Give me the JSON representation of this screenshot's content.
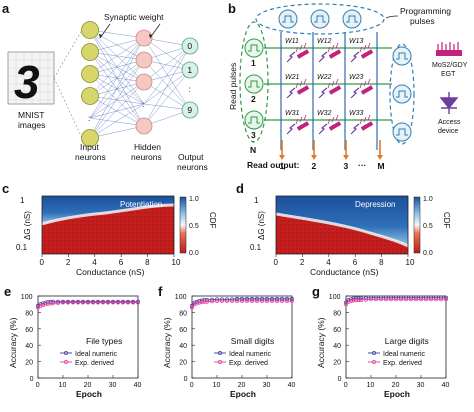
{
  "panels": {
    "a": {
      "letter": "a",
      "digit_image_text": "3",
      "mnist_label_line1": "MNIST",
      "mnist_label_line2": "images",
      "input_label_line1": "Input",
      "input_label_line2": "neurons",
      "hidden_label_line1": "Hidden",
      "hidden_label_line2": "neurons",
      "output_label_line1": "Output",
      "output_label_line2": "neurons",
      "synaptic_weight_label": "Synaptic weight",
      "output_neuron_labels": [
        "0",
        "1",
        "9"
      ],
      "output_dots": ":"
    },
    "b": {
      "letter": "b",
      "programming_pulses_line1": "Programming",
      "programming_pulses_line2": "pulses",
      "read_pulses_label": "Read pulses",
      "row_labels": [
        "1",
        "2",
        "3",
        "N"
      ],
      "row_dots": ":",
      "weight_labels": [
        [
          "W11",
          "W12",
          "W13"
        ],
        [
          "W21",
          "W22",
          "W23"
        ],
        [
          "W31",
          "W32",
          "W33"
        ]
      ],
      "read_output_label": "Read output:",
      "column_labels": [
        "1",
        "2",
        "3",
        "M"
      ],
      "column_dots": "···",
      "device_label_line1": "MoS2/GDY",
      "device_label_line2": "EGT",
      "access_label_line1": "Access",
      "access_label_line2": "device",
      "colors": {
        "pulse_blue": "#2f7fb5",
        "row_line": "#2e9a48",
        "col_line": "#2f6fb0",
        "device_magenta": "#c2227a",
        "output_arrow": "#e07a28",
        "diode": "#6b3fa0"
      }
    },
    "c": {
      "letter": "c",
      "title": "Potentiation",
      "xlabel": "Conductance (nS)",
      "ylabel": "ΔG (nS)",
      "x_ticks": [
        "0",
        "2",
        "4",
        "6",
        "8",
        "10"
      ],
      "y_ticks": [
        "1",
        "0.1"
      ],
      "colorbar_label": "CDF",
      "colorbar_ticks": [
        "1.0",
        "0.5",
        "0.0"
      ]
    },
    "d": {
      "letter": "d",
      "title": "Depression",
      "xlabel": "Conductance (nS)",
      "ylabel": "ΔG (nS)",
      "x_ticks": [
        "0",
        "2",
        "4",
        "6",
        "8",
        "10"
      ],
      "y_ticks": [
        "1",
        "0.1"
      ],
      "colorbar_label": "CDF",
      "colorbar_ticks": [
        "1.0",
        "0.5",
        "0.0"
      ]
    }
  },
  "chart_data": [
    {
      "panel": "e",
      "type": "line",
      "title": "File types",
      "xlabel": "Epoch",
      "ylabel": "Accuracy (%)",
      "xlim": [
        0,
        40
      ],
      "ylim": [
        0,
        100
      ],
      "x_ticks": [
        "0",
        "10",
        "20",
        "30",
        "40"
      ],
      "y_ticks": [
        "0",
        "20",
        "40",
        "60",
        "80",
        "100"
      ],
      "legend_position": "lower-right",
      "series": [
        {
          "name": "Ideal numeric",
          "color": "#3a3aa8",
          "x": [
            0,
            1,
            2,
            3,
            4,
            5,
            6,
            8,
            10,
            12,
            14,
            16,
            18,
            20,
            22,
            24,
            26,
            28,
            30,
            32,
            34,
            36,
            38,
            40
          ],
          "values": [
            88,
            90,
            91,
            92,
            92.5,
            93,
            93,
            93,
            93,
            93,
            93,
            93,
            93,
            93,
            93,
            93,
            93,
            93,
            93,
            93,
            93,
            93,
            93,
            93
          ]
        },
        {
          "name": "Exp. derived",
          "color": "#e0409a",
          "x": [
            0,
            1,
            2,
            3,
            4,
            5,
            6,
            8,
            10,
            12,
            14,
            16,
            18,
            20,
            22,
            24,
            26,
            28,
            30,
            32,
            34,
            36,
            38,
            40
          ],
          "values": [
            86,
            88,
            89,
            90,
            90.5,
            91,
            91,
            91.5,
            92,
            92,
            92,
            92,
            92,
            92,
            92,
            92,
            92,
            92,
            92,
            92,
            92,
            92,
            92,
            92
          ]
        }
      ]
    },
    {
      "panel": "f",
      "type": "line",
      "title": "Small digits",
      "xlabel": "Epoch",
      "ylabel": "Accuracy (%)",
      "xlim": [
        0,
        40
      ],
      "ylim": [
        0,
        100
      ],
      "x_ticks": [
        "0",
        "10",
        "20",
        "30",
        "40"
      ],
      "y_ticks": [
        "0",
        "20",
        "40",
        "60",
        "80",
        "100"
      ],
      "legend_position": "lower-right",
      "series": [
        {
          "name": "Ideal numeric",
          "color": "#3a3aa8",
          "x": [
            0,
            1,
            2,
            3,
            4,
            5,
            6,
            8,
            10,
            12,
            14,
            16,
            18,
            20,
            22,
            24,
            26,
            28,
            30,
            32,
            34,
            36,
            38,
            40
          ],
          "values": [
            88,
            92,
            93,
            94,
            94.5,
            95,
            95,
            95.5,
            96,
            96,
            96,
            96,
            96.5,
            96.5,
            96.5,
            96.5,
            96.5,
            96.5,
            96.5,
            96.5,
            96.5,
            96.5,
            96.5,
            96.5
          ]
        },
        {
          "name": "Exp. derived",
          "color": "#e0409a",
          "x": [
            0,
            1,
            2,
            3,
            4,
            5,
            6,
            8,
            10,
            12,
            14,
            16,
            18,
            20,
            22,
            24,
            26,
            28,
            30,
            32,
            34,
            36,
            38,
            40
          ],
          "values": [
            86,
            90,
            91,
            92,
            92.5,
            93,
            93,
            93.5,
            94,
            94,
            94,
            94,
            94,
            94,
            94,
            94,
            94,
            94,
            94,
            94,
            94,
            94,
            94,
            94
          ]
        }
      ]
    },
    {
      "panel": "g",
      "type": "line",
      "title": "Large digits",
      "xlabel": "Epoch",
      "ylabel": "Accuracy (%)",
      "xlim": [
        0,
        40
      ],
      "ylim": [
        0,
        100
      ],
      "x_ticks": [
        "0",
        "10",
        "20",
        "30",
        "40"
      ],
      "y_ticks": [
        "0",
        "20",
        "40",
        "60",
        "80",
        "100"
      ],
      "legend_position": "lower-right",
      "series": [
        {
          "name": "Ideal numeric",
          "color": "#3a3aa8",
          "x": [
            0,
            1,
            2,
            3,
            4,
            5,
            6,
            8,
            10,
            12,
            14,
            16,
            18,
            20,
            22,
            24,
            26,
            28,
            30,
            32,
            34,
            36,
            38,
            40
          ],
          "values": [
            92,
            95,
            96,
            97,
            97,
            97.5,
            97.5,
            97.5,
            98,
            98,
            98,
            98,
            98,
            98,
            98,
            98,
            98,
            98,
            98,
            98,
            98,
            98,
            98,
            98
          ]
        },
        {
          "name": "Exp. derived",
          "color": "#e0409a",
          "x": [
            0,
            1,
            2,
            3,
            4,
            5,
            6,
            8,
            10,
            12,
            14,
            16,
            18,
            20,
            22,
            24,
            26,
            28,
            30,
            32,
            34,
            36,
            38,
            40
          ],
          "values": [
            90,
            93,
            94,
            94.5,
            95,
            95,
            95,
            95.5,
            96,
            96,
            96,
            96,
            96,
            96,
            96,
            96,
            96,
            96,
            96,
            96,
            96,
            96,
            96,
            96
          ]
        }
      ]
    }
  ]
}
